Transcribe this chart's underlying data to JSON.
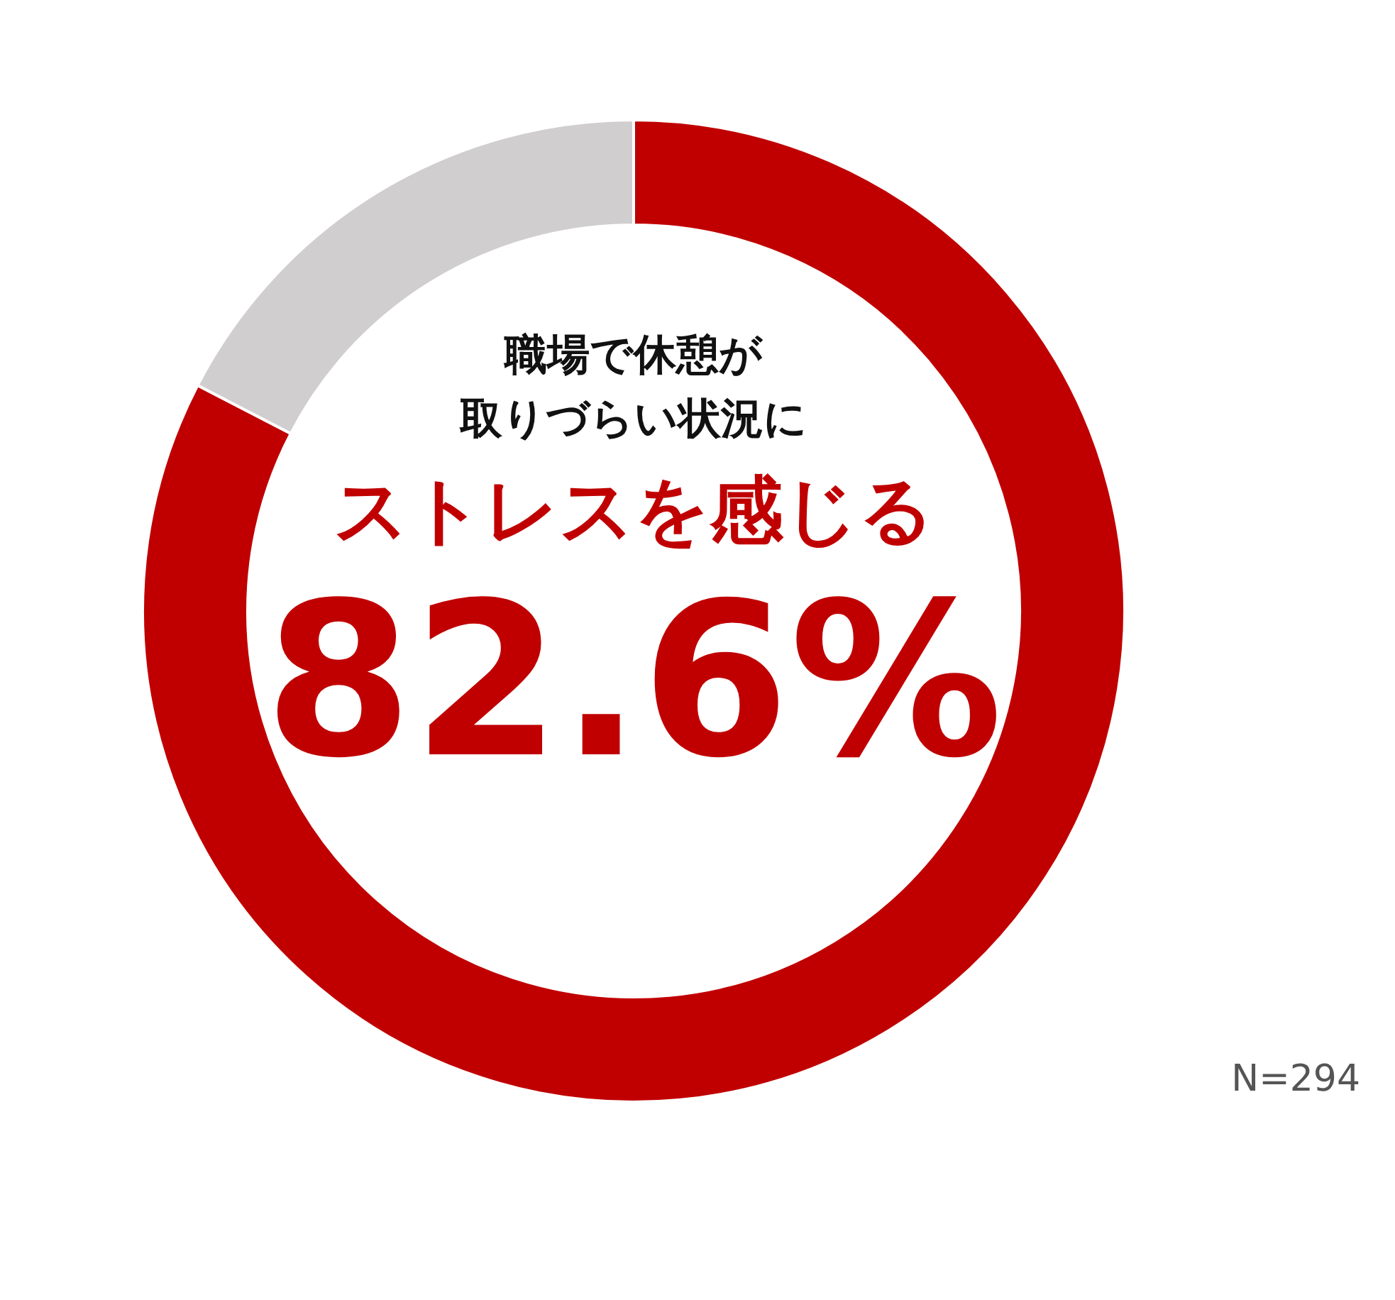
{
  "chart_data": {
    "type": "donut",
    "title": "職場で休憩が",
    "subtitle": "取りづらい状況に",
    "categories": [
      "ストレスを感じる",
      null
    ],
    "values": [
      82.6,
      17.4
    ],
    "colors": [
      "#c00000",
      "#d0cece"
    ],
    "value_labels": [
      "82.6%",
      null
    ],
    "annotations": [
      "N=294"
    ]
  }
}
